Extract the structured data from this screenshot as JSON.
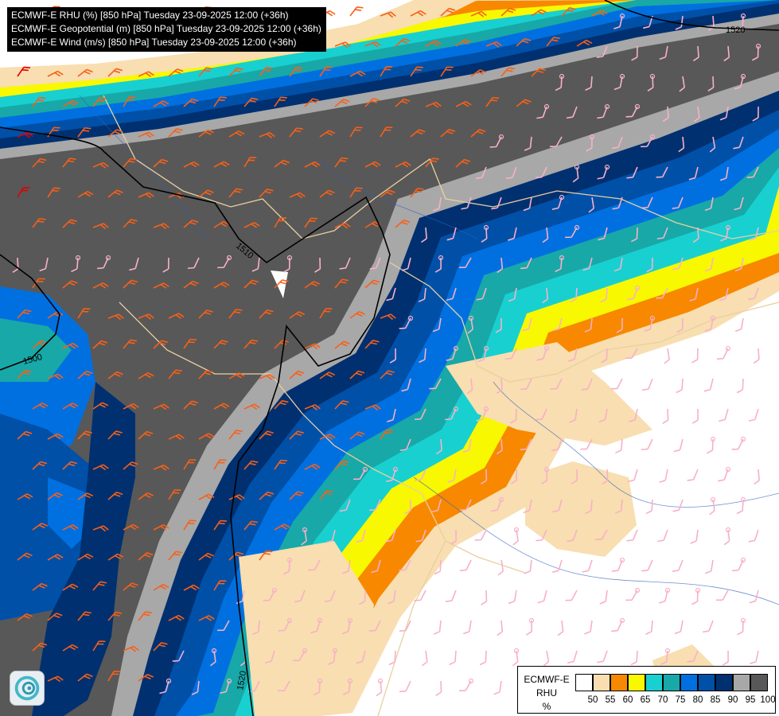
{
  "title_lines": [
    "ECMWF-E RHU (%) [850 hPa] Tuesday 23-09-2025 12:00 (+36h)",
    "ECMWF-E Geopotential (m) [850 hPa] Tuesday 23-09-2025 12:00 (+36h)",
    "ECMWF-E Wind (m/s) [850 hPa] Tuesday 23-09-2025 12:00 (+36h)"
  ],
  "legend": {
    "title_lines": [
      "ECMWF-E",
      "RHU",
      "%"
    ],
    "ticks": [
      "50",
      "55",
      "60",
      "65",
      "70",
      "75",
      "80",
      "85",
      "90",
      "95",
      "100"
    ],
    "colors": [
      "#ffffff",
      "#f8deb0",
      "#f88800",
      "#f8f800",
      "#18d0d0",
      "#18a8a8",
      "#0070e0",
      "#0050a8",
      "#003070",
      "#a8a8a8",
      "#585858"
    ]
  },
  "contour_labels": [
    "1520",
    "1510",
    "1500",
    "1520"
  ],
  "wind_barb_colors": {
    "weak": "#f8b0c8",
    "moderate": "#f86018",
    "strong": "#e00000"
  },
  "contour_color": "#000000",
  "border_color": "#e8d0a0",
  "river_color": "#3060c0"
}
